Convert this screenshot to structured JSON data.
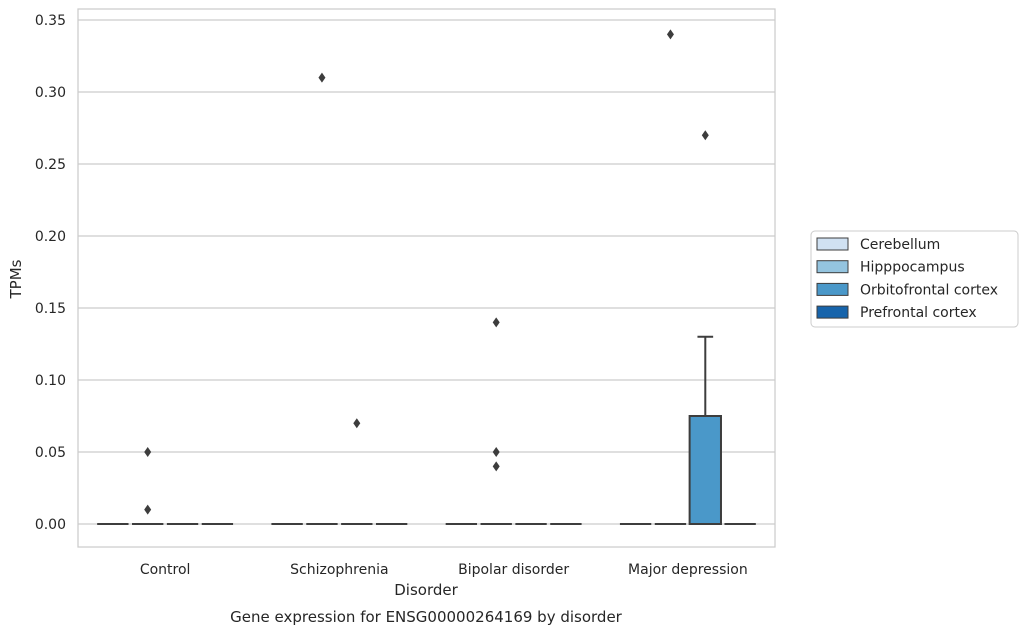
{
  "chart_data": {
    "type": "box",
    "xlabel": "Disorder",
    "ylabel": "TPMs",
    "caption": "Gene expression for ENSG00000264169 by disorder",
    "ylim": [
      -0.017,
      0.357
    ],
    "yticks": [
      "0.00",
      "0.05",
      "0.10",
      "0.15",
      "0.20",
      "0.25",
      "0.30",
      "0.35"
    ],
    "grid": true,
    "legend_position": "right",
    "categories": [
      "Control",
      "Schizophrenia",
      "Bipolar disorder",
      "Major depression"
    ],
    "series": [
      {
        "name": "Cerebellum",
        "color": "#d0e1f2",
        "boxes": [
          {
            "q1": 0,
            "median": 0,
            "q3": 0,
            "whisker_low": 0,
            "whisker_high": 0,
            "outliers": []
          },
          {
            "q1": 0,
            "median": 0,
            "q3": 0,
            "whisker_low": 0,
            "whisker_high": 0,
            "outliers": []
          },
          {
            "q1": 0,
            "median": 0,
            "q3": 0,
            "whisker_low": 0,
            "whisker_high": 0,
            "outliers": []
          },
          {
            "q1": 0,
            "median": 0,
            "q3": 0,
            "whisker_low": 0,
            "whisker_high": 0,
            "outliers": []
          }
        ]
      },
      {
        "name": "Hipppocampus",
        "color": "#94c4df",
        "boxes": [
          {
            "q1": 0,
            "median": 0,
            "q3": 0,
            "whisker_low": 0,
            "whisker_high": 0,
            "outliers": [
              0.05,
              0.01
            ]
          },
          {
            "q1": 0,
            "median": 0,
            "q3": 0,
            "whisker_low": 0,
            "whisker_high": 0,
            "outliers": [
              0.31
            ]
          },
          {
            "q1": 0,
            "median": 0,
            "q3": 0,
            "whisker_low": 0,
            "whisker_high": 0,
            "outliers": [
              0.14,
              0.05,
              0.04
            ]
          },
          {
            "q1": 0,
            "median": 0,
            "q3": 0,
            "whisker_low": 0,
            "whisker_high": 0,
            "outliers": [
              0.34
            ]
          }
        ]
      },
      {
        "name": "Orbitofrontal cortex",
        "color": "#4a98c9",
        "boxes": [
          {
            "q1": 0,
            "median": 0,
            "q3": 0,
            "whisker_low": 0,
            "whisker_high": 0,
            "outliers": []
          },
          {
            "q1": 0,
            "median": 0,
            "q3": 0,
            "whisker_low": 0,
            "whisker_high": 0,
            "outliers": [
              0.07
            ]
          },
          {
            "q1": 0,
            "median": 0,
            "q3": 0,
            "whisker_low": 0,
            "whisker_high": 0,
            "outliers": []
          },
          {
            "q1": 0,
            "median": 0,
            "q3": 0.075,
            "whisker_low": 0,
            "whisker_high": 0.13,
            "outliers": [
              0.27
            ]
          }
        ]
      },
      {
        "name": "Prefrontal cortex",
        "color": "#1764ab",
        "boxes": [
          {
            "q1": 0,
            "median": 0,
            "q3": 0,
            "whisker_low": 0,
            "whisker_high": 0,
            "outliers": []
          },
          {
            "q1": 0,
            "median": 0,
            "q3": 0,
            "whisker_low": 0,
            "whisker_high": 0,
            "outliers": []
          },
          {
            "q1": 0,
            "median": 0,
            "q3": 0,
            "whisker_low": 0,
            "whisker_high": 0,
            "outliers": []
          },
          {
            "q1": 0,
            "median": 0,
            "q3": 0,
            "whisker_low": 0,
            "whisker_high": 0,
            "outliers": []
          }
        ]
      }
    ]
  }
}
